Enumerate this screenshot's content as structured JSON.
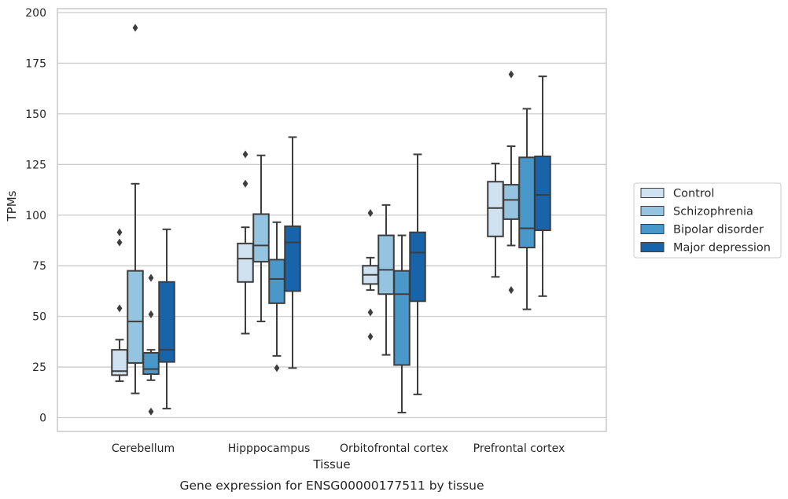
{
  "chart_data": {
    "type": "box",
    "xlabel": "Tissue",
    "ylabel": "TPMs",
    "caption": "Gene expression for ENSG00000177511 by tissue",
    "ylim": [
      -6,
      201
    ],
    "yticks": [
      0,
      25,
      50,
      75,
      100,
      125,
      150,
      175,
      200
    ],
    "grid": "horizontal",
    "legend_position": "right",
    "categories": [
      "Cerebellum",
      "Hipppocampus",
      "Orbitofrontal cortex",
      "Prefrontal cortex"
    ],
    "series": [
      {
        "name": "Control",
        "color": "#d0e1f2",
        "boxes": [
          {
            "whislo": 18,
            "q1": 21,
            "med": 23,
            "q3": 33.5,
            "whishi": 38.5,
            "fliers": [
              54,
              86.5,
              91.5
            ]
          },
          {
            "whislo": 41.5,
            "q1": 67,
            "med": 78.5,
            "q3": 86,
            "whishi": 94,
            "fliers": [
              115.5,
              130
            ]
          },
          {
            "whislo": 63,
            "q1": 66,
            "med": 70.5,
            "q3": 75,
            "whishi": 79,
            "fliers": [
              40,
              52,
              101
            ]
          },
          {
            "whislo": 69.5,
            "q1": 89.5,
            "med": 103.5,
            "q3": 116.5,
            "whishi": 125.5,
            "fliers": []
          }
        ]
      },
      {
        "name": "Schizophrenia",
        "color": "#94c4df",
        "boxes": [
          {
            "whislo": 12,
            "q1": 27,
            "med": 47.5,
            "q3": 72.5,
            "whishi": 115.5,
            "fliers": [
              192.5
            ]
          },
          {
            "whislo": 47.5,
            "q1": 77,
            "med": 85,
            "q3": 100.5,
            "whishi": 129.5,
            "fliers": []
          },
          {
            "whislo": 31,
            "q1": 61,
            "med": 73,
            "q3": 90,
            "whishi": 105,
            "fliers": []
          },
          {
            "whislo": 85,
            "q1": 98,
            "med": 107.5,
            "q3": 115,
            "whishi": 134,
            "fliers": [
              63,
              169.5
            ]
          }
        ]
      },
      {
        "name": "Bipolar disorder",
        "color": "#4a98c9",
        "boxes": [
          {
            "whislo": 18.5,
            "q1": 21.5,
            "med": 24,
            "q3": 32,
            "whishi": 33.5,
            "fliers": [
              3,
              51,
              69
            ]
          },
          {
            "whislo": 30.5,
            "q1": 56.5,
            "med": 68.5,
            "q3": 78,
            "whishi": 96.5,
            "fliers": [
              24.5
            ]
          },
          {
            "whislo": 2.5,
            "q1": 26,
            "med": 61,
            "q3": 72.5,
            "whishi": 90,
            "fliers": []
          },
          {
            "whislo": 53.5,
            "q1": 84,
            "med": 93.5,
            "q3": 128.5,
            "whishi": 152.5,
            "fliers": []
          }
        ]
      },
      {
        "name": "Major depression",
        "color": "#1764ab",
        "boxes": [
          {
            "whislo": 4.5,
            "q1": 27.5,
            "med": 33.5,
            "q3": 67,
            "whishi": 93,
            "fliers": []
          },
          {
            "whislo": 24.5,
            "q1": 62.5,
            "med": 86.5,
            "q3": 94.5,
            "whishi": 138.5,
            "fliers": []
          },
          {
            "whislo": 11.5,
            "q1": 57.5,
            "med": 81.5,
            "q3": 91.5,
            "whishi": 130,
            "fliers": []
          },
          {
            "whislo": 60,
            "q1": 92.5,
            "med": 110,
            "q3": 129,
            "whishi": 168.5,
            "fliers": []
          }
        ]
      }
    ]
  }
}
